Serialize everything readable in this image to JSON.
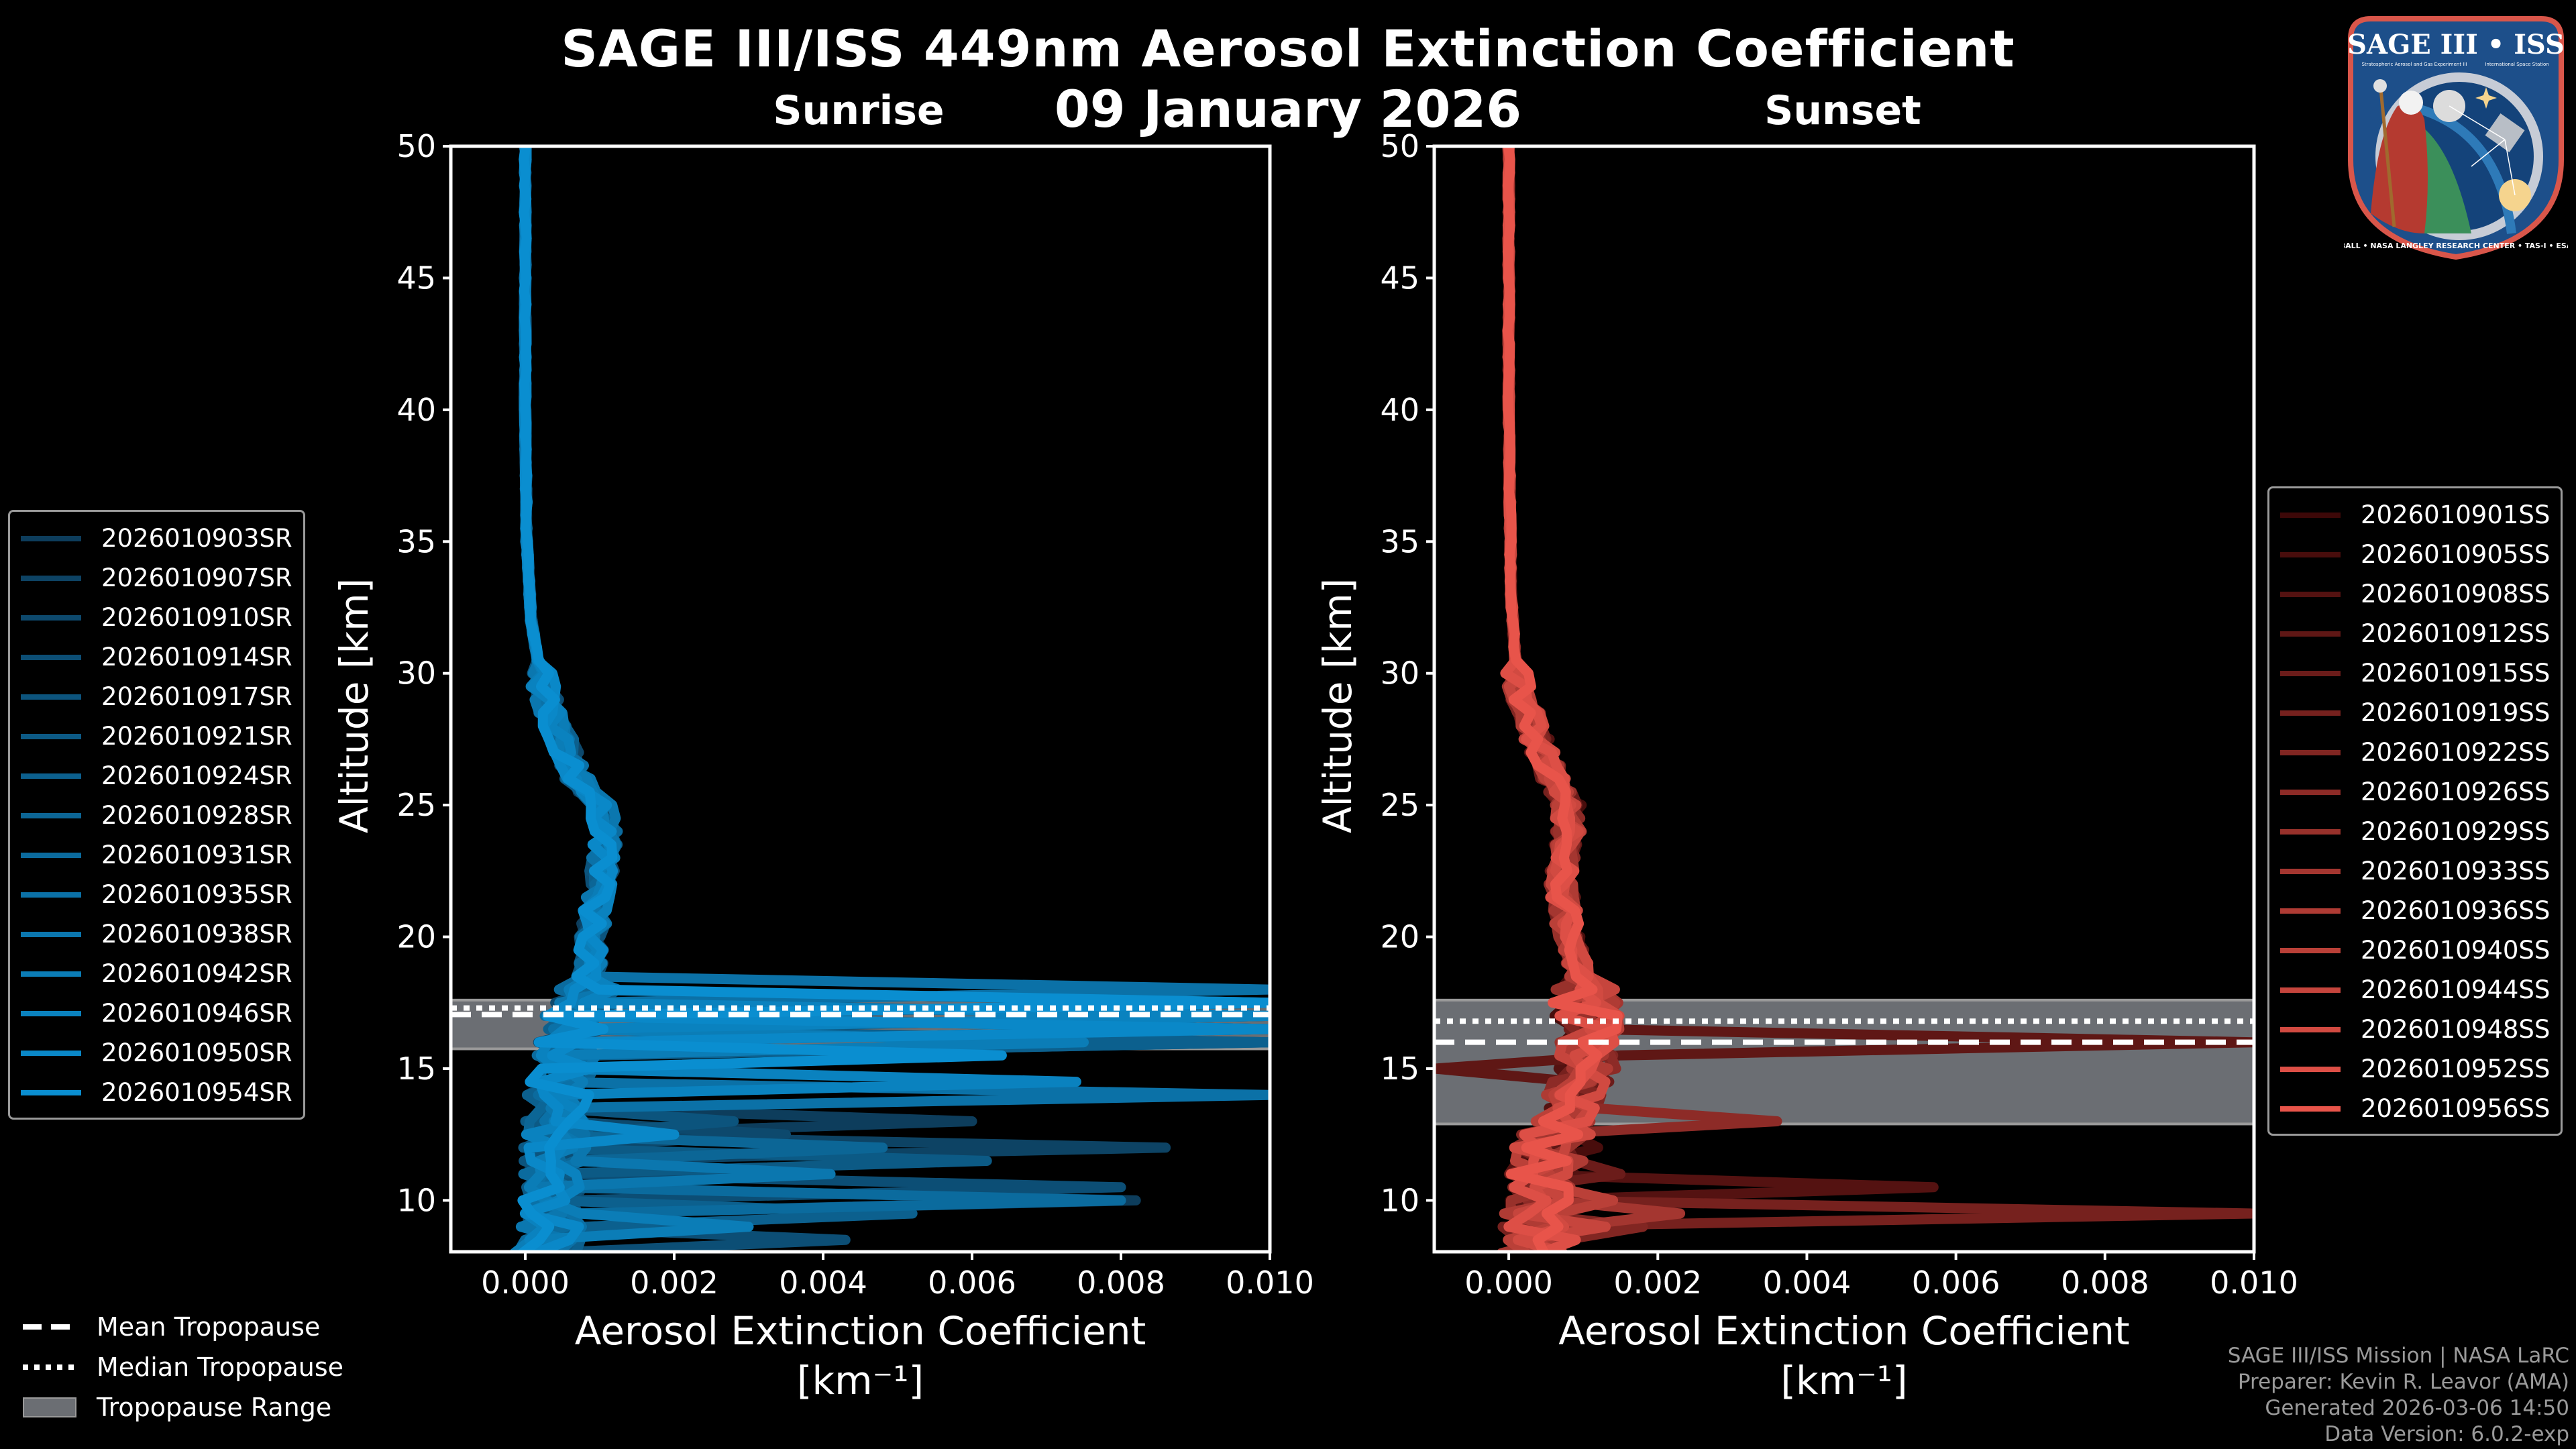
{
  "header": {
    "title": "SAGE III/ISS 449nm Aerosol Extinction Coefficient",
    "date": "09 January 2026"
  },
  "logo": {
    "name": "SAGE III • ISS mission patch",
    "top_text": "SAGE III • ISS",
    "subtitle_left": "Stratospheric Aerosol and Gas Experiment III",
    "subtitle_right": "International Space Station",
    "ring_text": "BALL • NASA LANGLEY RESEARCH CENTER • TAS-I • ESA"
  },
  "key_legend": [
    {
      "label": "Mean Tropopause",
      "style": "dashed"
    },
    {
      "label": "Median Tropopause",
      "style": "dotted"
    },
    {
      "label": "Tropopause Range",
      "style": "patch"
    }
  ],
  "footer": [
    "SAGE III/ISS Mission | NASA LaRC",
    "Preparer: Kevin R. Leavor (AMA)",
    "Generated 2026-03-06 14:50",
    "Data Version: 6.0.2-exp"
  ],
  "colors": {
    "background": "#000000",
    "sunrise_dark": "#0d3d5c",
    "sunrise_light": "#0a8ed0",
    "sunset_dark": "#3d0808",
    "sunset_light": "#e8544a",
    "tropopause_range": "#6b6e73",
    "axis": "#ffffff",
    "footer_text": "#9a9a9a"
  },
  "chart_data": [
    {
      "type": "line",
      "panel": "sunrise",
      "title": "Sunrise",
      "xlabel": "Aerosol Extinction Coefficient",
      "xlabel_units": "[km⁻¹]",
      "ylabel": "Altitude [km]",
      "xlim": [
        -0.001,
        0.01
      ],
      "ylim": [
        8,
        50
      ],
      "xticks": [
        0.0,
        0.002,
        0.004,
        0.006,
        0.008,
        0.01
      ],
      "xtick_labels": [
        "0.000",
        "0.002",
        "0.004",
        "0.006",
        "0.008",
        "0.010"
      ],
      "yticks": [
        10,
        15,
        20,
        25,
        30,
        35,
        40,
        45,
        50
      ],
      "ytick_labels": [
        "10",
        "15",
        "20",
        "25",
        "30",
        "35",
        "40",
        "45",
        "50"
      ],
      "grid": false,
      "legend_position": "outside-left",
      "tropopause": {
        "mean_km": 17.05,
        "median_km": 17.3,
        "range_km": [
          15.75,
          17.6
        ]
      },
      "profile_shape": {
        "background_km_values": [
          [
            50,
            0.0
          ],
          [
            40,
            0.0
          ],
          [
            35,
            2e-05
          ],
          [
            32,
            8e-05
          ],
          [
            30,
            0.0002
          ],
          [
            28,
            0.0004
          ],
          [
            26,
            0.0007
          ],
          [
            25,
            0.001
          ],
          [
            24,
            0.0011
          ],
          [
            22,
            0.001
          ],
          [
            20,
            0.0009
          ],
          [
            18,
            0.00085
          ],
          [
            17,
            0.0007
          ],
          [
            15,
            0.0005
          ],
          [
            12,
            0.0004
          ],
          [
            10,
            0.0004
          ],
          [
            8,
            0.0003
          ]
        ]
      },
      "series": [
        {
          "name": "2026010903SR",
          "spikes": [
            [
              17.6,
              0.01
            ],
            [
              13.2,
              0.006
            ],
            [
              10.2,
              0.0082
            ]
          ]
        },
        {
          "name": "2026010907SR",
          "spikes": [
            [
              16.4,
              0.01
            ],
            [
              11.9,
              0.0086
            ],
            [
              9.8,
              0.0078
            ]
          ]
        },
        {
          "name": "2026010910SR",
          "spikes": [
            [
              17.2,
              0.01
            ],
            [
              12.6,
              0.0035
            ]
          ]
        },
        {
          "name": "2026010914SR",
          "spikes": [
            [
              16.1,
              0.01
            ],
            [
              10.4,
              0.008
            ],
            [
              8.6,
              0.0043
            ]
          ]
        },
        {
          "name": "2026010917SR",
          "spikes": [
            [
              17.0,
              0.01
            ],
            [
              13.0,
              0.0028
            ]
          ]
        },
        {
          "name": "2026010921SR",
          "spikes": [
            [
              16.7,
              0.01
            ],
            [
              11.4,
              0.0062
            ]
          ]
        },
        {
          "name": "2026010924SR",
          "spikes": [
            [
              15.9,
              0.01
            ],
            [
              9.4,
              0.0052
            ]
          ]
        },
        {
          "name": "2026010928SR",
          "spikes": [
            [
              17.4,
              0.01
            ],
            [
              12.0,
              0.0048
            ]
          ]
        },
        {
          "name": "2026010931SR",
          "spikes": [
            [
              16.3,
              0.01
            ],
            [
              10.0,
              0.008
            ]
          ]
        },
        {
          "name": "2026010935SR",
          "spikes": [
            [
              17.8,
              0.01
            ],
            [
              14.0,
              0.01
            ]
          ]
        },
        {
          "name": "2026010938SR",
          "spikes": [
            [
              16.9,
              0.01
            ],
            [
              11.0,
              0.0041
            ]
          ]
        },
        {
          "name": "2026010942SR",
          "spikes": [
            [
              16.0,
              0.0075
            ],
            [
              9.0,
              0.003
            ]
          ]
        },
        {
          "name": "2026010946SR",
          "spikes": [
            [
              17.1,
              0.01
            ],
            [
              14.5,
              0.0074
            ]
          ]
        },
        {
          "name": "2026010950SR",
          "spikes": [
            [
              16.6,
              0.01
            ],
            [
              12.3,
              0.002
            ]
          ]
        },
        {
          "name": "2026010954SR",
          "spikes": [
            [
              17.3,
              0.01
            ],
            [
              15.4,
              0.0064
            ]
          ]
        }
      ]
    },
    {
      "type": "line",
      "panel": "sunset",
      "title": "Sunset",
      "xlabel": "Aerosol Extinction Coefficient",
      "xlabel_units": "[km⁻¹]",
      "ylabel": "Altitude [km]",
      "xlim": [
        -0.001,
        0.01
      ],
      "ylim": [
        8,
        50
      ],
      "xticks": [
        0.0,
        0.002,
        0.004,
        0.006,
        0.008,
        0.01
      ],
      "xtick_labels": [
        "0.000",
        "0.002",
        "0.004",
        "0.006",
        "0.008",
        "0.010"
      ],
      "yticks": [
        10,
        15,
        20,
        25,
        30,
        35,
        40,
        45,
        50
      ],
      "ytick_labels": [
        "10",
        "15",
        "20",
        "25",
        "30",
        "35",
        "40",
        "45",
        "50"
      ],
      "grid": false,
      "legend_position": "outside-right",
      "tropopause": {
        "mean_km": 16.0,
        "median_km": 16.8,
        "range_km": [
          12.9,
          17.6
        ]
      },
      "profile_shape": {
        "background_km_values": [
          [
            50,
            0.0
          ],
          [
            40,
            0.0
          ],
          [
            33,
            3e-05
          ],
          [
            30,
            0.0001
          ],
          [
            28,
            0.0003
          ],
          [
            26,
            0.0006
          ],
          [
            25,
            0.0008
          ],
          [
            24,
            0.0008
          ],
          [
            22,
            0.0007
          ],
          [
            20,
            0.0008
          ],
          [
            18,
            0.001
          ],
          [
            16,
            0.0011
          ],
          [
            14,
            0.0009
          ],
          [
            12,
            0.0005
          ],
          [
            10,
            0.0004
          ],
          [
            8,
            0.0003
          ]
        ]
      },
      "series": [
        {
          "name": "2026010901SS",
          "spikes": []
        },
        {
          "name": "2026010905SS",
          "spikes": [
            [
              12.2,
              0.0012
            ]
          ]
        },
        {
          "name": "2026010908SS",
          "spikes": [
            [
              10.6,
              0.0057
            ]
          ]
        },
        {
          "name": "2026010912SS",
          "spikes": [
            [
              16.0,
              0.01
            ],
            [
              15.2,
              -0.001
            ]
          ]
        },
        {
          "name": "2026010915SS",
          "spikes": [
            [
              11.0,
              0.0015
            ]
          ]
        },
        {
          "name": "2026010919SS",
          "spikes": [
            [
              9.6,
              0.01
            ]
          ]
        },
        {
          "name": "2026010922SS",
          "spikes": [
            [
              9.2,
              0.0018
            ]
          ]
        },
        {
          "name": "2026010926SS",
          "spikes": [
            [
              13.0,
              0.0036
            ]
          ]
        },
        {
          "name": "2026010929SS",
          "spikes": [
            [
              8.8,
              0.0012
            ]
          ]
        },
        {
          "name": "2026010933SS",
          "spikes": [
            [
              9.4,
              0.0023
            ]
          ]
        },
        {
          "name": "2026010936SS",
          "spikes": [
            [
              11.6,
              0.001
            ]
          ]
        },
        {
          "name": "2026010940SS",
          "spikes": [
            [
              10.1,
              0.0014
            ]
          ]
        },
        {
          "name": "2026010944SS",
          "spikes": [
            [
              9.0,
              0.0013
            ]
          ]
        },
        {
          "name": "2026010948SS",
          "spikes": [
            [
              12.5,
              0.0011
            ]
          ]
        },
        {
          "name": "2026010952SS",
          "spikes": [
            [
              8.5,
              0.0009
            ]
          ]
        },
        {
          "name": "2026010956SS",
          "spikes": [
            [
              10.4,
              0.0008
            ]
          ]
        }
      ]
    }
  ]
}
